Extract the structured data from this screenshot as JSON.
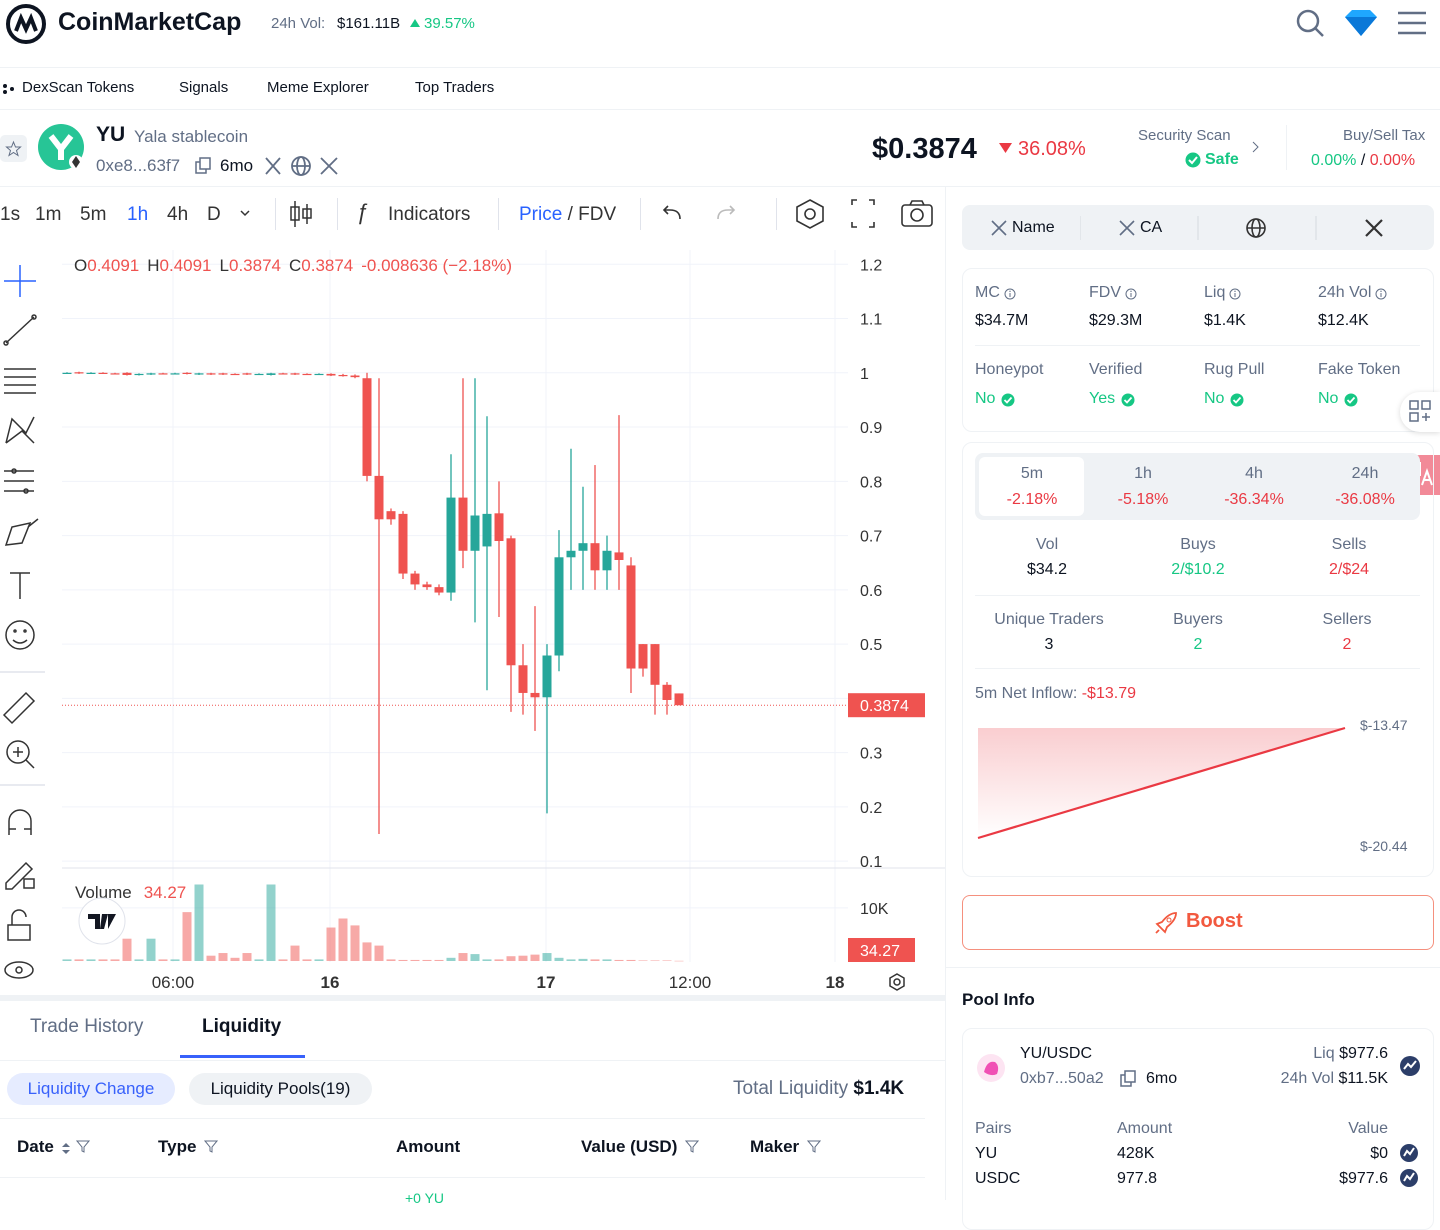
{
  "header": {
    "brand": "CoinMarketCap",
    "vol_label": "24h Vol:",
    "vol_value": "$161.11B",
    "vol_change": "39.57%"
  },
  "nav": [
    "DexScan Tokens",
    "Signals",
    "Meme Explorer",
    "Top Traders"
  ],
  "token": {
    "symbol": "YU",
    "name": "Yala stablecoin",
    "address": "0xe8...63f7",
    "age": "6mo",
    "price": "$0.3874",
    "change": "36.08%",
    "security_label": "Security Scan",
    "security_value": "Safe",
    "tax_label": "Buy/Sell Tax",
    "buy_tax": "0.00%",
    "tax_sep": "/",
    "sell_tax": "0.00%"
  },
  "toolbar": {
    "intervals": [
      "1s",
      "1m",
      "5m",
      "1h",
      "4h",
      "D"
    ],
    "indicators": "Indicators",
    "price": "Price",
    "sep": "/",
    "fdv": "FDV"
  },
  "chart_data": {
    "type": "candlestick",
    "up_color": "#26a69a",
    "down_color": "#ef5350",
    "grid": true,
    "ylim": [
      0.08,
      1.23
    ],
    "yticks": [
      1.2,
      1.1,
      1,
      0.9,
      0.8,
      0.7,
      0.6,
      0.5,
      0.4,
      0.3,
      0.2,
      0.1
    ],
    "volume_label": "Volume",
    "vlim": [
      0,
      16000
    ],
    "vticks": [
      {
        "value": 10000,
        "label": "10K"
      }
    ],
    "x_labels": [
      "06:00",
      "16",
      "17",
      "12:00",
      "18"
    ],
    "ohlc_labels": [
      "O",
      "H",
      "L",
      "C"
    ],
    "change": "-0.008636 (−2.18%)",
    "candles": [
      {
        "o": 1.0,
        "h": 1.001,
        "l": 0.999,
        "c": 1.0,
        "v": 300
      },
      {
        "o": 1.001,
        "h": 1.002,
        "l": 0.998,
        "c": 0.999,
        "v": 300
      },
      {
        "o": 0.999,
        "h": 1.001,
        "l": 0.998,
        "c": 1.0,
        "v": 300
      },
      {
        "o": 1.0,
        "h": 1.001,
        "l": 0.998,
        "c": 0.999,
        "v": 300
      },
      {
        "o": 0.999,
        "h": 1.0,
        "l": 0.997,
        "c": 0.998,
        "v": 300
      },
      {
        "o": 1.0,
        "h": 1.001,
        "l": 0.995,
        "c": 0.996,
        "v": 4200
      },
      {
        "o": 0.996,
        "h": 0.999,
        "l": 0.995,
        "c": 0.998,
        "v": 300
      },
      {
        "o": 0.997,
        "h": 1.0,
        "l": 0.996,
        "c": 0.999,
        "v": 4200
      },
      {
        "o": 0.999,
        "h": 1.0,
        "l": 0.997,
        "c": 0.998,
        "v": 300
      },
      {
        "o": 0.998,
        "h": 1.0,
        "l": 0.997,
        "c": 0.999,
        "v": 300
      },
      {
        "o": 1.0,
        "h": 1.001,
        "l": 0.997,
        "c": 0.998,
        "v": 9200
      },
      {
        "o": 0.997,
        "h": 1.0,
        "l": 0.996,
        "c": 0.999,
        "v": 14400
      },
      {
        "o": 0.999,
        "h": 1.0,
        "l": 0.996,
        "c": 0.997,
        "v": 1000
      },
      {
        "o": 0.999,
        "h": 1.0,
        "l": 0.996,
        "c": 0.997,
        "v": 1500
      },
      {
        "o": 0.998,
        "h": 0.999,
        "l": 0.996,
        "c": 0.997,
        "v": 600
      },
      {
        "o": 0.999,
        "h": 1.0,
        "l": 0.996,
        "c": 0.997,
        "v": 1500
      },
      {
        "o": 0.997,
        "h": 0.999,
        "l": 0.996,
        "c": 0.998,
        "v": 300
      },
      {
        "o": 0.996,
        "h": 1.0,
        "l": 0.995,
        "c": 0.999,
        "v": 14400
      },
      {
        "o": 0.999,
        "h": 1.0,
        "l": 0.997,
        "c": 0.998,
        "v": 300
      },
      {
        "o": 0.999,
        "h": 1.0,
        "l": 0.996,
        "c": 0.997,
        "v": 2900
      },
      {
        "o": 0.998,
        "h": 0.999,
        "l": 0.996,
        "c": 0.997,
        "v": 300
      },
      {
        "o": 0.997,
        "h": 0.999,
        "l": 0.996,
        "c": 0.998,
        "v": 300
      },
      {
        "o": 0.998,
        "h": 0.999,
        "l": 0.994,
        "c": 0.995,
        "v": 6300
      },
      {
        "o": 0.996,
        "h": 0.998,
        "l": 0.993,
        "c": 0.994,
        "v": 8000
      },
      {
        "o": 0.995,
        "h": 0.997,
        "l": 0.99,
        "c": 0.992,
        "v": 6700
      },
      {
        "o": 0.99,
        "h": 1.0,
        "l": 0.8,
        "c": 0.81,
        "v": 3500
      },
      {
        "o": 0.81,
        "h": 0.99,
        "l": 0.15,
        "c": 0.73,
        "v": 2900
      },
      {
        "o": 0.745,
        "h": 0.75,
        "l": 0.72,
        "c": 0.73,
        "v": 300
      },
      {
        "o": 0.74,
        "h": 0.745,
        "l": 0.62,
        "c": 0.63,
        "v": 200
      },
      {
        "o": 0.63,
        "h": 0.635,
        "l": 0.6,
        "c": 0.61,
        "v": 200
      },
      {
        "o": 0.61,
        "h": 0.615,
        "l": 0.6,
        "c": 0.605,
        "v": 200
      },
      {
        "o": 0.605,
        "h": 0.61,
        "l": 0.59,
        "c": 0.595,
        "v": 200
      },
      {
        "o": 0.595,
        "h": 0.85,
        "l": 0.58,
        "c": 0.77,
        "v": 600
      },
      {
        "o": 0.77,
        "h": 0.99,
        "l": 0.64,
        "c": 0.672,
        "v": 1500
      },
      {
        "o": 0.672,
        "h": 0.99,
        "l": 0.54,
        "c": 0.737,
        "v": 1300
      },
      {
        "o": 0.68,
        "h": 0.92,
        "l": 0.415,
        "c": 0.74,
        "v": 300
      },
      {
        "o": 0.741,
        "h": 0.8,
        "l": 0.55,
        "c": 0.69,
        "v": 300
      },
      {
        "o": 0.695,
        "h": 0.7,
        "l": 0.375,
        "c": 0.461,
        "v": 900
      },
      {
        "o": 0.461,
        "h": 0.5,
        "l": 0.37,
        "c": 0.41,
        "v": 1000
      },
      {
        "o": 0.41,
        "h": 0.57,
        "l": 0.34,
        "c": 0.402,
        "v": 1200
      },
      {
        "o": 0.402,
        "h": 0.5,
        "l": 0.188,
        "c": 0.479,
        "v": 1500
      },
      {
        "o": 0.479,
        "h": 0.71,
        "l": 0.45,
        "c": 0.66,
        "v": 600
      },
      {
        "o": 0.66,
        "h": 0.86,
        "l": 0.6,
        "c": 0.672,
        "v": 300
      },
      {
        "o": 0.672,
        "h": 0.79,
        "l": 0.6,
        "c": 0.686,
        "v": 400
      },
      {
        "o": 0.686,
        "h": 0.83,
        "l": 0.6,
        "c": 0.636,
        "v": 300
      },
      {
        "o": 0.636,
        "h": 0.7,
        "l": 0.6,
        "c": 0.672,
        "v": 300
      },
      {
        "o": 0.669,
        "h": 0.922,
        "l": 0.6,
        "c": 0.655,
        "v": 200
      },
      {
        "o": 0.645,
        "h": 0.66,
        "l": 0.41,
        "c": 0.455,
        "v": 200
      },
      {
        "o": 0.5,
        "h": 0.5,
        "l": 0.44,
        "c": 0.455,
        "v": 100
      },
      {
        "o": 0.5,
        "h": 0.5,
        "l": 0.37,
        "c": 0.425,
        "v": 100
      },
      {
        "o": 0.425,
        "h": 0.43,
        "l": 0.37,
        "c": 0.397,
        "v": 100
      },
      {
        "o": 0.4091,
        "h": 0.4091,
        "l": 0.3874,
        "c": 0.3874,
        "v": 34.27
      }
    ]
  },
  "tabs": [
    "Trade History",
    "Liquidity"
  ],
  "liquidity": {
    "filters": [
      "Liquidity Change",
      "Liquidity Pools(19)"
    ],
    "total_label": "Total Liquidity",
    "total_value": "$1.4K",
    "columns": [
      "Date",
      "Type",
      "Amount",
      "Value (USD)",
      "Maker"
    ],
    "first_row_amount": "+0 YU"
  },
  "links": [
    "Name",
    "CA"
  ],
  "stats": [
    {
      "label": "MC",
      "value": "$34.7M"
    },
    {
      "label": "FDV",
      "value": "$29.3M"
    },
    {
      "label": "Liq",
      "value": "$1.4K"
    },
    {
      "label": "24h Vol",
      "value": "$12.4K"
    }
  ],
  "checks": [
    {
      "label": "Honeypot",
      "value": "No"
    },
    {
      "label": "Verified",
      "value": "Yes"
    },
    {
      "label": "Rug Pull",
      "value": "No"
    },
    {
      "label": "Fake Token",
      "value": "No"
    }
  ],
  "periods": [
    {
      "label": "5m",
      "change": "-2.18%"
    },
    {
      "label": "1h",
      "change": "-5.18%"
    },
    {
      "label": "4h",
      "change": "-36.34%"
    },
    {
      "label": "24h",
      "change": "-36.08%"
    }
  ],
  "activity": [
    {
      "label": "Vol",
      "value": "$34.2"
    },
    {
      "label": "Buys",
      "value": "2/$10.2"
    },
    {
      "label": "Sells",
      "value": "2/$24"
    }
  ],
  "traders": [
    {
      "label": "Unique Traders",
      "value": 3
    },
    {
      "label": "Buyers",
      "value": 2
    },
    {
      "label": "Sellers",
      "value": 2
    }
  ],
  "inflow": {
    "label": "5m Net Inflow:",
    "value": "-$13.79",
    "high": "$-13.47",
    "low": "$-20.44"
  },
  "boost": "Boost",
  "pool": {
    "title": "Pool Info",
    "pair": "YU/USDC",
    "address": "0xb7...50a2",
    "age": "6mo",
    "liq_label": "Liq",
    "liq_value": "$977.6",
    "vol_label": "24h Vol",
    "vol_value": "$11.5K",
    "columns": [
      "Pairs",
      "Amount",
      "Value"
    ],
    "rows": [
      [
        "YU",
        "428K",
        "$0"
      ],
      [
        "USDC",
        "977.8",
        "$977.6"
      ]
    ]
  }
}
